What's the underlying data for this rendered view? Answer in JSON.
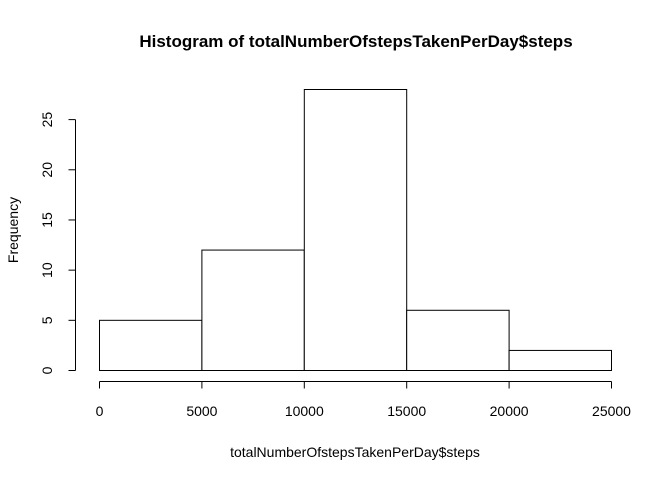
{
  "chart_data": {
    "type": "bar",
    "subtype": "histogram",
    "title": "Histogram of totalNumberOfstepsTakenPerDay$steps",
    "xlabel": "totalNumberOfstepsTakenPerDay$steps",
    "ylabel": "Frequency",
    "bins": [
      {
        "start": 0,
        "end": 5000,
        "value": 5
      },
      {
        "start": 5000,
        "end": 10000,
        "value": 12
      },
      {
        "start": 10000,
        "end": 15000,
        "value": 28
      },
      {
        "start": 15000,
        "end": 20000,
        "value": 6
      },
      {
        "start": 20000,
        "end": 25000,
        "value": 2
      }
    ],
    "xlim": [
      0,
      25000
    ],
    "ylim": [
      0,
      28
    ],
    "x_ticks": [
      0,
      5000,
      10000,
      15000,
      20000,
      25000
    ],
    "y_ticks": [
      0,
      5,
      10,
      15,
      20,
      25
    ],
    "grid": false,
    "legend": "none",
    "colors": {
      "bar_fill": "#ffffff",
      "bar_stroke": "#000000",
      "axis": "#000000",
      "background": "#ffffff"
    }
  }
}
